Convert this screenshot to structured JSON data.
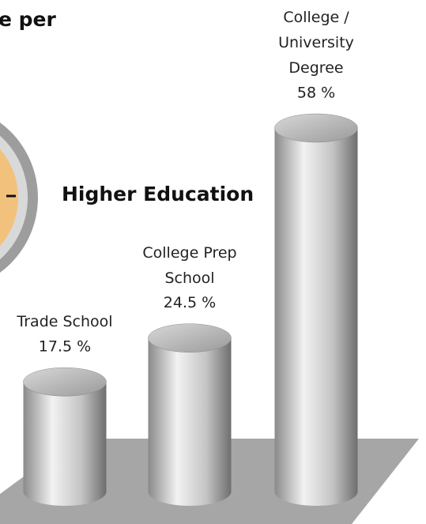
{
  "chart_data": {
    "type": "bar",
    "title": "e per",
    "subtitle": "Higher Education",
    "categories": [
      "Trade School",
      "College Prep School",
      "College / University Degree"
    ],
    "values": [
      17.5,
      24.5,
      58
    ],
    "value_labels": [
      "17.5 %",
      "24.5 %",
      "58 %"
    ],
    "color": "#a9a9a9"
  }
}
